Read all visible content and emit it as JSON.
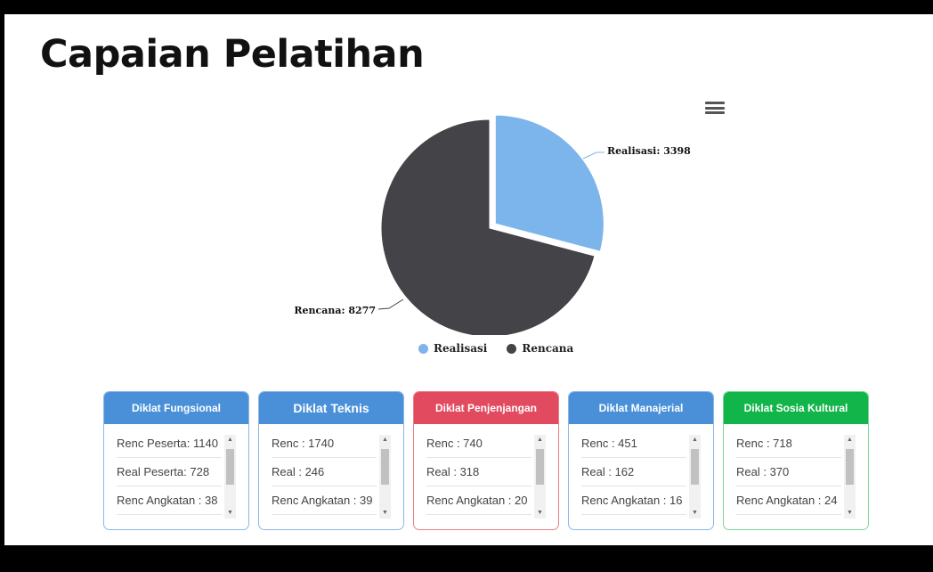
{
  "page_title": "Capaian Pelatihan",
  "chart_data": {
    "type": "pie",
    "title": "",
    "slices": [
      {
        "name": "Realisasi",
        "value": 3398,
        "color": "#7cb4ec",
        "label": "Realisasi: 3398",
        "sliced": true
      },
      {
        "name": "Rencana",
        "value": 8277,
        "color": "#434348",
        "label": "Rencana: 8277",
        "sliced": false
      }
    ],
    "legend": {
      "placement": "bottom-center",
      "items": [
        "Realisasi",
        "Rencana"
      ]
    }
  },
  "cards": [
    {
      "title": "Diklat Fungsional",
      "color": "#4a90d9",
      "border": "#8ab8e6",
      "rows": [
        "Renc Peserta: 1140",
        "Real Peserta: 728",
        "Renc Angkatan : 38"
      ]
    },
    {
      "title": "Diklat Teknis",
      "color": "#4a90d9",
      "border": "#8ab8e6",
      "rows": [
        "Renc : 1740",
        "Real : 246",
        "Renc Angkatan : 39"
      ]
    },
    {
      "title": "Diklat Penjenjangan",
      "color": "#e24b5f",
      "border": "#e87d8a",
      "rows": [
        "Renc : 740",
        "Real : 318",
        "Renc Angkatan : 20"
      ]
    },
    {
      "title": "Diklat Manajerial",
      "color": "#4a90d9",
      "border": "#8ab8e6",
      "rows": [
        "Renc : 451",
        "Real : 162",
        "Renc Angkatan : 16"
      ]
    },
    {
      "title": "Diklat Sosia Kultural",
      "color": "#12b54a",
      "border": "#7bd69a",
      "rows": [
        "Renc : 718",
        "Real : 370",
        "Renc Angkatan : 24"
      ]
    }
  ],
  "icons": {
    "menu": "hamburger-menu-icon"
  }
}
